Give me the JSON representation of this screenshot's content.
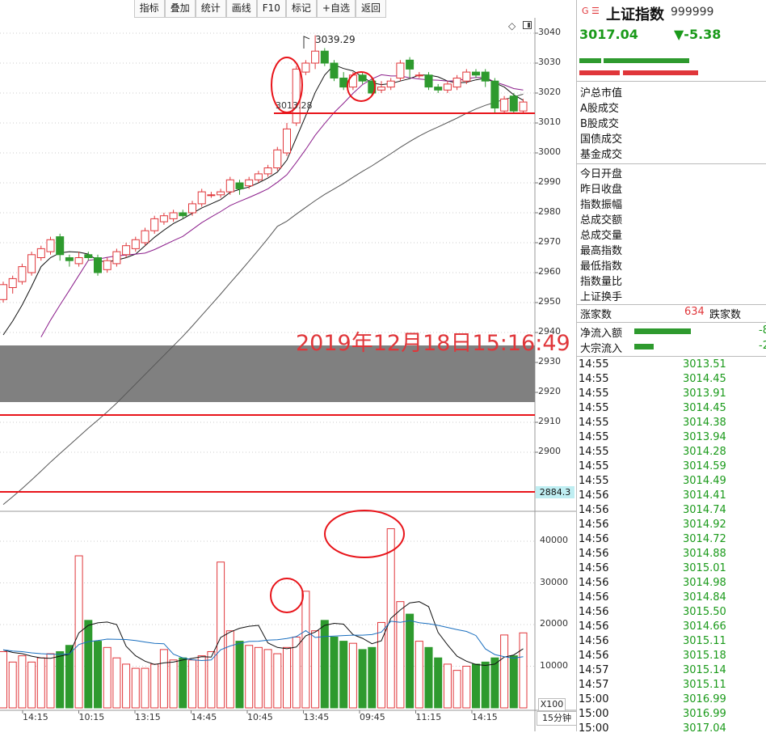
{
  "toolbar": {
    "items": [
      "指标",
      "叠加",
      "统计",
      "画线",
      "F10",
      "标记",
      "+自选",
      "返回"
    ]
  },
  "chart_icons": {
    "diamond": "◇",
    "panel": "panel-icon"
  },
  "chart_data": [
    {
      "type": "candlestick",
      "y_ticks": [
        "3040",
        "3030",
        "3020",
        "3010",
        "3000",
        "2990",
        "2980",
        "2970",
        "2960",
        "2950",
        "2940",
        "2930",
        "2920",
        "2910",
        "2900"
      ],
      "ylim": [
        2884,
        3044
      ],
      "candles": [
        [
          2951,
          2956,
          2950,
          2957
        ],
        [
          2955,
          2958,
          2953,
          2959
        ],
        [
          2957,
          2962,
          2956,
          2963
        ],
        [
          2960,
          2966,
          2959,
          2967
        ],
        [
          2965,
          2968,
          2964,
          2969
        ],
        [
          2967,
          2971,
          2966,
          2972
        ],
        [
          2972,
          2966,
          2964,
          2973
        ],
        [
          2965,
          2964,
          2962,
          2966
        ],
        [
          2963,
          2965,
          2962,
          2967
        ],
        [
          2966,
          2965,
          2964,
          2967
        ],
        [
          2965,
          2960,
          2959,
          2966
        ],
        [
          2961,
          2964,
          2960,
          2965
        ],
        [
          2963,
          2967,
          2962,
          2968
        ],
        [
          2966,
          2969,
          2965,
          2970
        ],
        [
          2968,
          2971,
          2967,
          2972
        ],
        [
          2970,
          2974,
          2969,
          2975
        ],
        [
          2974,
          2978,
          2973,
          2979
        ],
        [
          2977,
          2979,
          2976,
          2980
        ],
        [
          2978,
          2980,
          2977,
          2981
        ],
        [
          2980,
          2979,
          2978,
          2981
        ],
        [
          2980,
          2983,
          2979,
          2984
        ],
        [
          2983,
          2987,
          2982,
          2988
        ],
        [
          2986,
          2986,
          2985,
          2987
        ],
        [
          2986,
          2987,
          2985,
          2988
        ],
        [
          2987,
          2991,
          2986,
          2992
        ],
        [
          2990,
          2988,
          2986,
          2991
        ],
        [
          2989,
          2991,
          2988,
          2992
        ],
        [
          2991,
          2993,
          2990,
          2994
        ],
        [
          2993,
          2995,
          2992,
          2996
        ],
        [
          2995,
          3001,
          2994,
          3002
        ],
        [
          3000,
          3008,
          2999,
          3010
        ],
        [
          3010,
          3028,
          3009,
          3029
        ],
        [
          3027,
          3030,
          3026,
          3031
        ],
        [
          3030,
          3034,
          3028,
          3039.29
        ],
        [
          3034,
          3030,
          3029,
          3035
        ],
        [
          3030,
          3025,
          3024,
          3031
        ],
        [
          3025,
          3022,
          3021,
          3027
        ],
        [
          3022,
          3026,
          3021,
          3027
        ],
        [
          3026,
          3024,
          3023,
          3027
        ],
        [
          3024,
          3020,
          3019,
          3025
        ],
        [
          3021,
          3022,
          3020,
          3024
        ],
        [
          3022,
          3024,
          3021,
          3025
        ],
        [
          3025,
          3030,
          3024,
          3031
        ],
        [
          3031,
          3028,
          3025,
          3032
        ],
        [
          3026,
          3026,
          3025,
          3027
        ],
        [
          3026,
          3022,
          3021,
          3027
        ],
        [
          3022,
          3021,
          3020,
          3023
        ],
        [
          3021,
          3023,
          3020,
          3024
        ],
        [
          3022,
          3025,
          3021,
          3026
        ],
        [
          3024,
          3027,
          3023,
          3028
        ],
        [
          3027,
          3026,
          3025,
          3028
        ],
        [
          3027,
          3024,
          3022,
          3028
        ],
        [
          3024,
          3015,
          3013,
          3025
        ],
        [
          3014,
          3018,
          3013,
          3019
        ],
        [
          3019,
          3014,
          3013,
          3020
        ],
        [
          3014,
          3017,
          3013,
          3018
        ]
      ],
      "high_label": "3039.29",
      "support_label": "3013.28",
      "price_marker": "2884.3",
      "overlay_date": "2019年12月18日15:16:49"
    },
    {
      "type": "bar",
      "y_ticks": [
        "40000",
        "30000",
        "20000",
        "10000"
      ],
      "ylim": [
        0,
        48000
      ],
      "x_ticks": [
        "14:15",
        "10:15",
        "13:15",
        "14:45",
        "10:45",
        "13:45",
        "09:45",
        "11:15",
        "14:15"
      ],
      "volumes": [
        13500,
        11000,
        12500,
        11000,
        12000,
        13000,
        13500,
        15000,
        36500,
        21000,
        16000,
        14500,
        12000,
        10500,
        9500,
        9500,
        10500,
        14000,
        11500,
        12000,
        11500,
        12500,
        13500,
        35000,
        18500,
        16000,
        15000,
        14500,
        14000,
        13000,
        14500,
        17000,
        28000,
        18500,
        21000,
        17000,
        16000,
        15500,
        14000,
        14500,
        20500,
        43000,
        25500,
        22500,
        16000,
        14500,
        12000,
        10500,
        9000,
        10000,
        10500,
        11000,
        12000,
        17500,
        12500,
        18000
      ],
      "unit_label": "X100",
      "period": "15分钟"
    }
  ],
  "side": {
    "logo": "G ☰",
    "title": "上证指数",
    "code": "999999",
    "price": "3017.04",
    "change": "▼-5.38",
    "labels_a": [
      "沪总市值",
      "A股成交",
      "B股成交",
      "国债成交",
      "基金成交"
    ],
    "labels_b": [
      "今日开盘",
      "昨日收盘",
      "指数振幅",
      "总成交额",
      "总成交量",
      "最高指数",
      "最低指数",
      "指数量比",
      "上证换手"
    ],
    "rise_label": "涨家数",
    "rise_count": "634",
    "fall_label": "跌家数",
    "net_inflow_label": "净流入额",
    "net_inflow_value": "-8",
    "block_label": "大宗流入",
    "block_value": "-2",
    "ticks": [
      [
        "14:55",
        "3013.51"
      ],
      [
        "14:55",
        "3014.45"
      ],
      [
        "14:55",
        "3013.91"
      ],
      [
        "14:55",
        "3014.45"
      ],
      [
        "14:55",
        "3014.38"
      ],
      [
        "14:55",
        "3013.94"
      ],
      [
        "14:55",
        "3014.28"
      ],
      [
        "14:55",
        "3014.59"
      ],
      [
        "14:55",
        "3014.49"
      ],
      [
        "14:56",
        "3014.41"
      ],
      [
        "14:56",
        "3014.74"
      ],
      [
        "14:56",
        "3014.92"
      ],
      [
        "14:56",
        "3014.72"
      ],
      [
        "14:56",
        "3014.88"
      ],
      [
        "14:56",
        "3015.01"
      ],
      [
        "14:56",
        "3014.98"
      ],
      [
        "14:56",
        "3014.84"
      ],
      [
        "14:56",
        "3015.50"
      ],
      [
        "14:56",
        "3014.66"
      ],
      [
        "14:56",
        "3015.11"
      ],
      [
        "14:56",
        "3015.18"
      ],
      [
        "14:57",
        "3015.14"
      ],
      [
        "14:57",
        "3015.11"
      ],
      [
        "15:00",
        "3016.99"
      ],
      [
        "15:00",
        "3016.99"
      ],
      [
        "15:00",
        "3017.04"
      ]
    ]
  },
  "colors": {
    "up": "#e0363a",
    "down": "#2e9a2e",
    "ma1": "#111111",
    "ma2": "#8b1d8b",
    "ma3": "#555555",
    "vma2": "#1a6fbf"
  }
}
